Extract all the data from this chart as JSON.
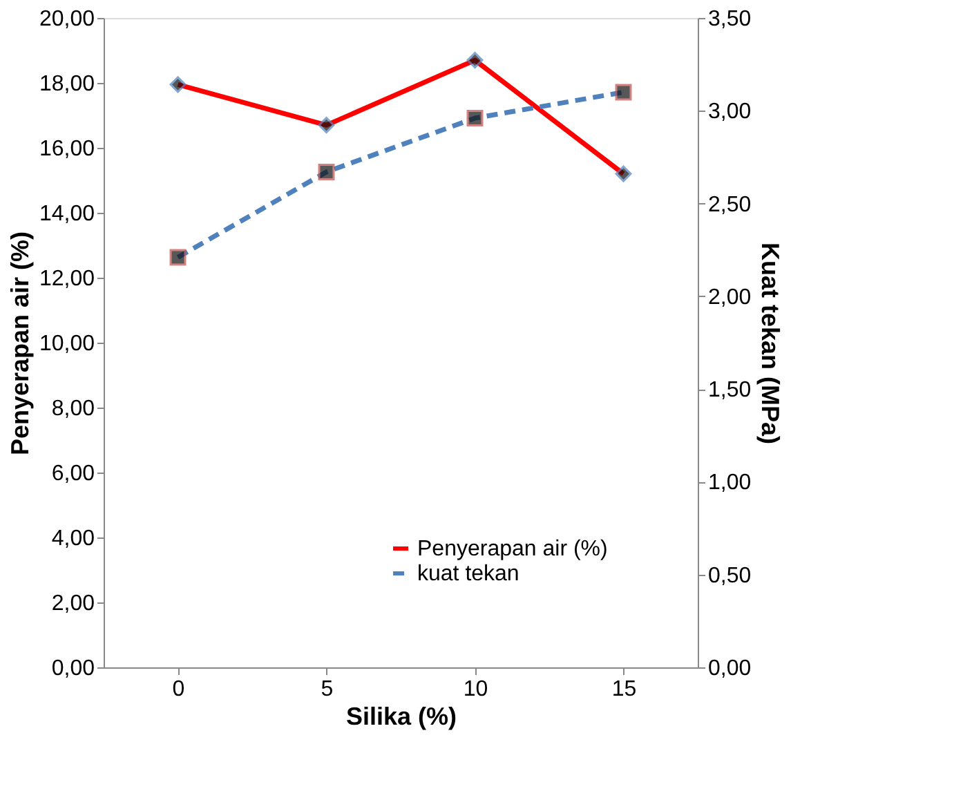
{
  "chart_data": {
    "type": "line",
    "xlabel": "Silika (%)",
    "ylabel": "Penyerapan air (%)",
    "y2label": "Kuat tekan (MPa)",
    "categories": [
      "0",
      "5",
      "10",
      "15"
    ],
    "series": [
      {
        "name": "Penyerapan air  (%)",
        "color": "#ff0000",
        "values": [
          17.95,
          16.7,
          18.7,
          15.2
        ],
        "marker": "diamond",
        "line_style": "solid"
      },
      {
        "name": "kuat tekan",
        "color": "#4f81bd",
        "values": [
          2.21,
          2.67,
          2.96,
          3.1
        ],
        "axis": "y2",
        "marker": "square",
        "line_style": "dashed"
      }
    ],
    "ylim": [
      0,
      20
    ],
    "yticks": [
      {
        "value": 0,
        "label": "0,00"
      },
      {
        "value": 2,
        "label": "2,00"
      },
      {
        "value": 4,
        "label": "4,00"
      },
      {
        "value": 6,
        "label": "6,00"
      },
      {
        "value": 8,
        "label": "8,00"
      },
      {
        "value": 10,
        "label": "10,00"
      },
      {
        "value": 12,
        "label": "12,00"
      },
      {
        "value": 14,
        "label": "14,00"
      },
      {
        "value": 16,
        "label": "16,00"
      },
      {
        "value": 18,
        "label": "18,00"
      },
      {
        "value": 20,
        "label": "20,00"
      }
    ],
    "y2lim": [
      0,
      3.5
    ],
    "y2ticks": [
      {
        "value": 0,
        "label": "0,00"
      },
      {
        "value": 0.5,
        "label": "0,50"
      },
      {
        "value": 1,
        "label": "1,00"
      },
      {
        "value": 1.5,
        "label": "1,50"
      },
      {
        "value": 2,
        "label": "2,00"
      },
      {
        "value": 2.5,
        "label": "2,50"
      },
      {
        "value": 3,
        "label": "3,00"
      },
      {
        "value": 3.5,
        "label": "3,50"
      }
    ],
    "grid": false,
    "legend": "bottom right"
  }
}
